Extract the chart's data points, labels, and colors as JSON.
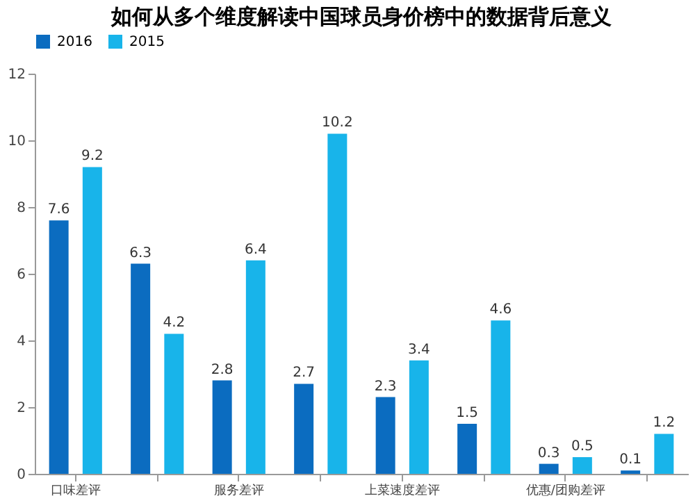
{
  "chart_data": {
    "type": "bar",
    "title": "如何从多个维度解读中国球员身价榜中的数据背后意义",
    "categories": [
      "口味差评",
      null,
      "服务差评",
      null,
      "上菜速度差评",
      null,
      "优惠/团购差评",
      null
    ],
    "series": [
      {
        "name": "2016",
        "color": "#0b6cc0",
        "values": [
          7.6,
          6.3,
          2.8,
          2.7,
          2.3,
          1.5,
          0.3,
          0.1
        ]
      },
      {
        "name": "2015",
        "color": "#18b4ea",
        "values": [
          9.2,
          4.2,
          6.4,
          10.2,
          3.4,
          4.6,
          0.5,
          1.2
        ]
      }
    ],
    "ylim": [
      0,
      12
    ],
    "yticks": [
      0,
      2,
      4,
      6,
      8,
      10,
      12
    ],
    "grid": false,
    "legend": "top",
    "data_labels": true
  }
}
